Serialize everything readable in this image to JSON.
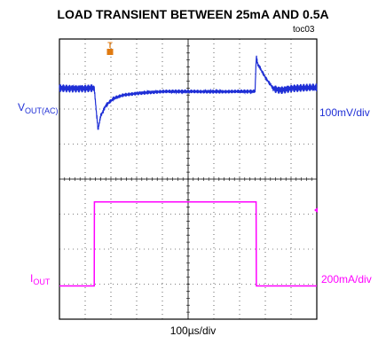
{
  "title": "LOAD TRANSIENT BETWEEN 25mA AND 0.5A",
  "figure_id": "toc03",
  "trigger_marker": "T",
  "colors": {
    "vout": "#1f2fd6",
    "iout": "#ff00ff",
    "trigger": "#e07a10",
    "grid": "#000000"
  },
  "chart_data": {
    "type": "line",
    "title": "LOAD TRANSIENT BETWEEN 25mA AND 0.5A",
    "xlabel": "100µs/div",
    "x_divisions": 10,
    "y_divisions": 8,
    "grid": true,
    "series": [
      {
        "name_main": "V",
        "name_sub": "OUT(AC)",
        "scale": "100mV/div",
        "x_div": [
          0,
          1.35,
          1.5,
          1.6,
          1.8,
          2.1,
          2.5,
          3.0,
          3.5,
          4.0,
          5.0,
          6.0,
          7.0,
          7.6,
          7.65,
          7.7,
          8.0,
          8.3,
          8.6,
          9.0,
          10.0
        ],
        "y_div": [
          6.6,
          6.6,
          5.4,
          5.8,
          6.1,
          6.3,
          6.4,
          6.45,
          6.48,
          6.5,
          6.5,
          6.5,
          6.5,
          6.5,
          7.5,
          7.3,
          6.9,
          6.6,
          6.55,
          6.6,
          6.6
        ]
      },
      {
        "name_main": "I",
        "name_sub": "OUT",
        "scale": "200mA/div",
        "x_div": [
          0,
          1.35,
          1.36,
          7.64,
          7.65,
          10.0
        ],
        "y_div": [
          0.95,
          0.95,
          3.35,
          3.35,
          0.95,
          0.95
        ]
      }
    ]
  }
}
